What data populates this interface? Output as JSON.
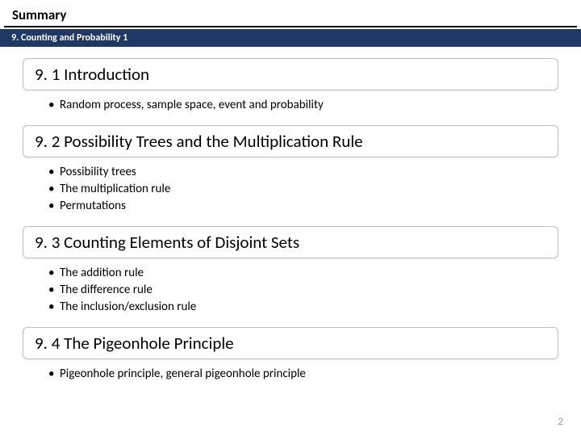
{
  "page_title": "Summary",
  "chapter_bar": "9. Counting and Probability 1",
  "sections": [
    {
      "title": "9. 1 Introduction",
      "bullets": [
        "Random process, sample space, event and probability"
      ]
    },
    {
      "title": "9. 2 Possibility Trees and the Multiplication Rule",
      "bullets": [
        "Possibility trees",
        "The multiplication rule",
        "Permutations"
      ]
    },
    {
      "title": "9. 3 Counting Elements of Disjoint Sets",
      "bullets": [
        "The addition rule",
        "The difference rule",
        "The inclusion/exclusion rule"
      ]
    },
    {
      "title": "9. 4 The Pigeonhole Principle",
      "bullets": [
        "Pigeonhole principle, general pigeonhole principle"
      ]
    }
  ],
  "page_number": "2",
  "colors": {
    "chapter_bar_bg": "#1f3864",
    "chapter_bar_text": "#ffffff",
    "section_border": "#c0c0c0",
    "page_num_color": "#999999"
  }
}
